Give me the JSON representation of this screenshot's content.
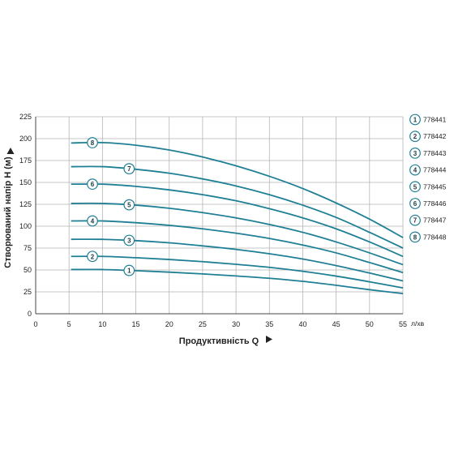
{
  "chart_data": {
    "type": "line",
    "xlabel": "Продуктивність  Q",
    "ylabel": "Створюваний напір H (м)",
    "x_unit": "л/хв",
    "xlim": [
      0,
      55
    ],
    "ylim": [
      0,
      225
    ],
    "x_ticks": [
      0,
      5,
      10,
      15,
      20,
      25,
      30,
      35,
      40,
      45,
      50,
      55
    ],
    "y_ticks": [
      0,
      25,
      50,
      75,
      100,
      125,
      150,
      175,
      200,
      225
    ],
    "grid": true,
    "legend_position": "right",
    "line_color": "#1f7f95",
    "series": [
      {
        "marker": "1",
        "name": "778441",
        "marker_x": 14,
        "points": [
          [
            5.3,
            50.5
          ],
          [
            10,
            50.5
          ],
          [
            15,
            49.2
          ],
          [
            20,
            47.5
          ],
          [
            25,
            45.5
          ],
          [
            30,
            43.2
          ],
          [
            35,
            40.5
          ],
          [
            40,
            37.0
          ],
          [
            45,
            32.5
          ],
          [
            50,
            27.5
          ],
          [
            55,
            23.0
          ]
        ]
      },
      {
        "marker": "2",
        "name": "778442",
        "marker_x": 8.5,
        "points": [
          [
            5.3,
            65.5
          ],
          [
            10,
            65.5
          ],
          [
            15,
            64.0
          ],
          [
            20,
            62.0
          ],
          [
            25,
            59.5
          ],
          [
            30,
            56.5
          ],
          [
            35,
            53.0
          ],
          [
            40,
            48.5
          ],
          [
            45,
            43.0
          ],
          [
            50,
            36.5
          ],
          [
            55,
            29.5
          ]
        ]
      },
      {
        "marker": "3",
        "name": "778443",
        "marker_x": 14,
        "points": [
          [
            5.3,
            85.0
          ],
          [
            10,
            85.0
          ],
          [
            15,
            83.5
          ],
          [
            20,
            81.0
          ],
          [
            25,
            77.5
          ],
          [
            30,
            73.5
          ],
          [
            35,
            68.5
          ],
          [
            40,
            62.5
          ],
          [
            45,
            55.0
          ],
          [
            50,
            46.5
          ],
          [
            55,
            37.5
          ]
        ]
      },
      {
        "marker": "4",
        "name": "778444",
        "marker_x": 8.5,
        "points": [
          [
            5.3,
            106.0
          ],
          [
            10,
            106.0
          ],
          [
            15,
            104.0
          ],
          [
            20,
            101.0
          ],
          [
            25,
            97.0
          ],
          [
            30,
            92.0
          ],
          [
            35,
            86.0
          ],
          [
            40,
            78.5
          ],
          [
            45,
            69.5
          ],
          [
            50,
            58.5
          ],
          [
            55,
            47.0
          ]
        ]
      },
      {
        "marker": "5",
        "name": "778445",
        "marker_x": 14,
        "points": [
          [
            5.3,
            126.0
          ],
          [
            10,
            126.0
          ],
          [
            15,
            124.0
          ],
          [
            20,
            120.5
          ],
          [
            25,
            115.5
          ],
          [
            30,
            109.5
          ],
          [
            35,
            102.0
          ],
          [
            40,
            93.0
          ],
          [
            45,
            82.0
          ],
          [
            50,
            69.5
          ],
          [
            55,
            56.0
          ]
        ]
      },
      {
        "marker": "6",
        "name": "778446",
        "marker_x": 8.5,
        "points": [
          [
            5.3,
            148.0
          ],
          [
            10,
            148.0
          ],
          [
            15,
            145.5
          ],
          [
            20,
            141.5
          ],
          [
            25,
            136.0
          ],
          [
            30,
            129.0
          ],
          [
            35,
            120.0
          ],
          [
            40,
            109.5
          ],
          [
            45,
            97.0
          ],
          [
            50,
            82.0
          ],
          [
            55,
            65.5
          ]
        ]
      },
      {
        "marker": "7",
        "name": "778447",
        "marker_x": 14,
        "points": [
          [
            5.3,
            168.0
          ],
          [
            10,
            168.0
          ],
          [
            15,
            165.0
          ],
          [
            20,
            160.5
          ],
          [
            25,
            154.0
          ],
          [
            30,
            146.0
          ],
          [
            35,
            136.0
          ],
          [
            40,
            124.0
          ],
          [
            45,
            110.0
          ],
          [
            50,
            93.0
          ],
          [
            55,
            75.0
          ]
        ]
      },
      {
        "marker": "8",
        "name": "778448",
        "marker_x": 8.5,
        "points": [
          [
            5.3,
            195.0
          ],
          [
            10,
            195.5
          ],
          [
            15,
            192.5
          ],
          [
            20,
            187.0
          ],
          [
            25,
            179.0
          ],
          [
            30,
            169.0
          ],
          [
            35,
            157.0
          ],
          [
            40,
            143.0
          ],
          [
            45,
            126.5
          ],
          [
            50,
            108.0
          ],
          [
            55,
            87.0
          ]
        ]
      }
    ]
  }
}
